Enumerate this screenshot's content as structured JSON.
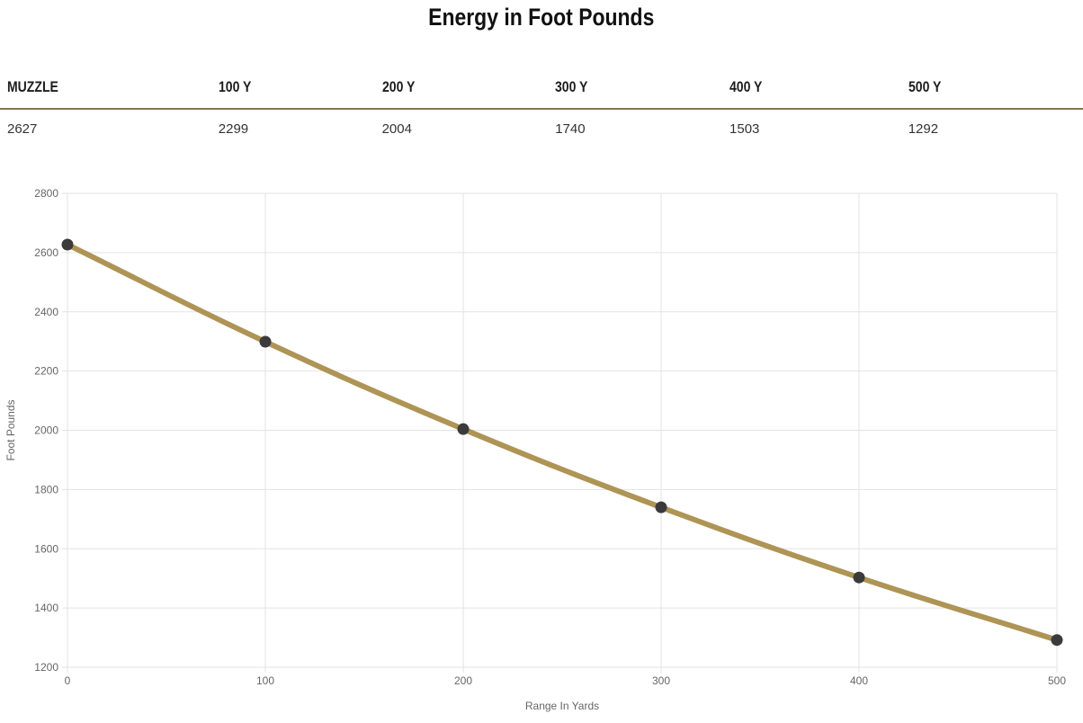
{
  "page": {
    "title": "Energy in Foot Pounds"
  },
  "table": {
    "headers": [
      "MUZZLE",
      "100 Y",
      "200 Y",
      "300 Y",
      "400 Y",
      "500 Y"
    ],
    "values": [
      "2627",
      "2299",
      "2004",
      "1740",
      "1503",
      "1292"
    ]
  },
  "chart_data": {
    "type": "line",
    "title": "Energy in Foot Pounds",
    "x": [
      0,
      100,
      200,
      300,
      400,
      500
    ],
    "series": [
      {
        "name": "Energy",
        "values": [
          2627,
          2299,
          2004,
          1740,
          1503,
          1292
        ]
      }
    ],
    "xlabel": "Range In Yards",
    "ylabel": "Foot Pounds",
    "xlim": [
      0,
      500
    ],
    "ylim": [
      1200,
      2800
    ],
    "x_ticks": [
      0,
      100,
      200,
      300,
      400,
      500
    ],
    "y_ticks": [
      1200,
      1400,
      1600,
      1800,
      2000,
      2200,
      2400,
      2600,
      2800
    ],
    "grid": true,
    "legend_position": "none",
    "colors": {
      "line": "#ae9455",
      "point": "#3b3b3b",
      "grid": "#e3e3e3",
      "tick_text": "#666666",
      "axis_title_text": "#666666"
    }
  },
  "colors": {
    "table_divider": "#847549",
    "title_text": "#111111",
    "header_text": "#1d1d1d",
    "value_text": "#333333"
  }
}
